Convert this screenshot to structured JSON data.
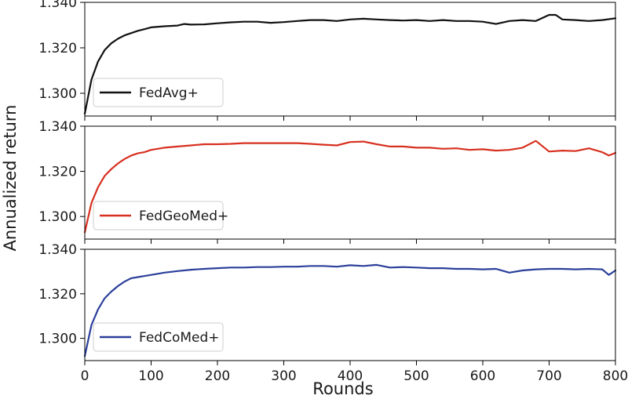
{
  "chart_data": {
    "type": "line",
    "xlabel": "Rounds",
    "ylabel": "Annualized return",
    "xlim": [
      0,
      800
    ],
    "ylim": [
      1.29,
      1.34
    ],
    "xticks": [
      "0",
      "100",
      "200",
      "300",
      "400",
      "500",
      "600",
      "700",
      "800"
    ],
    "yticks": [
      "1.300",
      "1.320",
      "1.340"
    ],
    "legend_position": "lower-left",
    "grid": false,
    "panels": [
      {
        "name": "FedAvg+",
        "color": "#111111",
        "x": [
          0,
          10,
          20,
          30,
          40,
          50,
          60,
          70,
          80,
          90,
          100,
          120,
          140,
          150,
          160,
          180,
          200,
          220,
          240,
          260,
          280,
          300,
          320,
          340,
          360,
          380,
          400,
          420,
          440,
          460,
          480,
          500,
          520,
          540,
          560,
          580,
          600,
          620,
          640,
          660,
          680,
          700,
          710,
          720,
          740,
          760,
          780,
          800
        ],
        "y": [
          1.291,
          1.306,
          1.314,
          1.319,
          1.322,
          1.324,
          1.3255,
          1.3265,
          1.3275,
          1.3282,
          1.329,
          1.3295,
          1.3298,
          1.3305,
          1.3302,
          1.3303,
          1.3308,
          1.3312,
          1.3315,
          1.3315,
          1.331,
          1.3313,
          1.3318,
          1.3322,
          1.3322,
          1.3318,
          1.3325,
          1.3328,
          1.3325,
          1.3322,
          1.332,
          1.3322,
          1.3318,
          1.3322,
          1.3318,
          1.3318,
          1.3315,
          1.3305,
          1.3318,
          1.3322,
          1.3318,
          1.3345,
          1.3345,
          1.3325,
          1.3322,
          1.3318,
          1.3322,
          1.333
        ]
      },
      {
        "name": "FedGeoMed+",
        "color": "#d7301f",
        "x": [
          0,
          10,
          20,
          30,
          40,
          50,
          60,
          70,
          80,
          90,
          100,
          120,
          140,
          160,
          180,
          200,
          220,
          240,
          260,
          280,
          300,
          320,
          340,
          360,
          380,
          400,
          420,
          440,
          460,
          480,
          500,
          520,
          540,
          560,
          580,
          600,
          620,
          640,
          660,
          680,
          700,
          720,
          740,
          760,
          780,
          790,
          800
        ],
        "y": [
          1.293,
          1.306,
          1.313,
          1.318,
          1.321,
          1.3235,
          1.3255,
          1.327,
          1.328,
          1.3285,
          1.3295,
          1.3305,
          1.331,
          1.3315,
          1.332,
          1.332,
          1.3322,
          1.3325,
          1.3325,
          1.3325,
          1.3325,
          1.3325,
          1.3322,
          1.3318,
          1.3315,
          1.333,
          1.3332,
          1.332,
          1.331,
          1.331,
          1.3305,
          1.3305,
          1.33,
          1.3302,
          1.3295,
          1.3298,
          1.3292,
          1.3295,
          1.3305,
          1.3335,
          1.3288,
          1.3292,
          1.329,
          1.3302,
          1.3285,
          1.327,
          1.3282
        ]
      },
      {
        "name": "FedCoMed+",
        "color": "#2b3f9a",
        "x": [
          0,
          10,
          20,
          30,
          40,
          50,
          60,
          70,
          80,
          90,
          100,
          120,
          140,
          160,
          180,
          200,
          220,
          240,
          260,
          280,
          300,
          320,
          340,
          360,
          380,
          400,
          420,
          440,
          460,
          480,
          500,
          520,
          540,
          560,
          580,
          600,
          620,
          640,
          660,
          680,
          700,
          720,
          740,
          760,
          780,
          790,
          800
        ],
        "y": [
          1.292,
          1.306,
          1.313,
          1.318,
          1.321,
          1.3235,
          1.3255,
          1.327,
          1.3275,
          1.328,
          1.3285,
          1.3295,
          1.3302,
          1.3308,
          1.3312,
          1.3315,
          1.3318,
          1.3318,
          1.332,
          1.332,
          1.3322,
          1.3322,
          1.3325,
          1.3325,
          1.3322,
          1.3328,
          1.3325,
          1.333,
          1.3318,
          1.332,
          1.3318,
          1.3315,
          1.3315,
          1.3312,
          1.3312,
          1.331,
          1.3312,
          1.3295,
          1.3305,
          1.331,
          1.3312,
          1.3312,
          1.331,
          1.3312,
          1.331,
          1.3285,
          1.3305
        ]
      }
    ]
  }
}
